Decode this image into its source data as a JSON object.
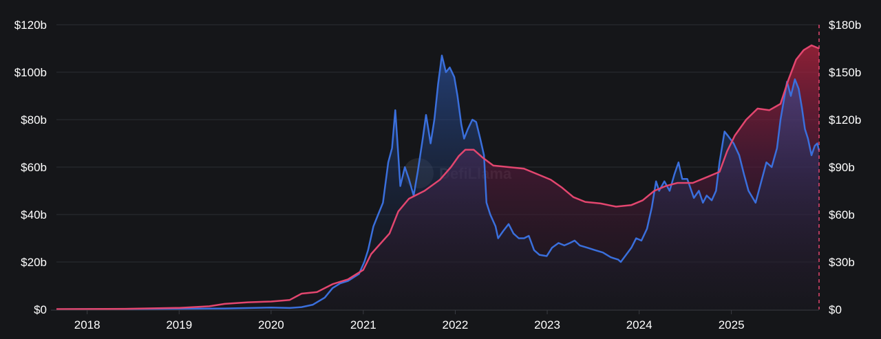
{
  "watermark": {
    "text": "DefiLlama",
    "icon": "llama-logo-icon"
  },
  "colors": {
    "background": "#151619",
    "grid": "#2c2e33",
    "axis": "#3a3c42",
    "text": "#ffffff",
    "blue_line": "#3a6fdc",
    "red_line": "#e3466f"
  },
  "chart_data": {
    "type": "area",
    "title": "",
    "xlabel": "",
    "ylabel_left": "",
    "ylabel_right": "",
    "xlim": [
      "2017-09-01",
      "2025-12-15"
    ],
    "ylim_left": [
      0,
      120
    ],
    "ylim_right": [
      0,
      180
    ],
    "x_ticks": [
      "2018",
      "2019",
      "2020",
      "2021",
      "2022",
      "2023",
      "2024",
      "2025"
    ],
    "y_ticks_left": [
      "$0",
      "$20b",
      "$40b",
      "$60b",
      "$80b",
      "$100b",
      "$120b"
    ],
    "y_ticks_right": [
      "$0",
      "$30b",
      "$60b",
      "$90b",
      "$120b",
      "$150b",
      "$180b"
    ],
    "grid": true,
    "legend": "none",
    "series": [
      {
        "axis": "left",
        "color": "#3a6fdc",
        "points": [
          [
            "2017-09-01",
            0.1
          ],
          [
            "2018-06-01",
            0.2
          ],
          [
            "2019-01-01",
            0.3
          ],
          [
            "2019-07-01",
            0.4
          ],
          [
            "2020-01-01",
            0.8
          ],
          [
            "2020-03-15",
            0.6
          ],
          [
            "2020-05-01",
            1.0
          ],
          [
            "2020-06-15",
            2.0
          ],
          [
            "2020-08-01",
            5.0
          ],
          [
            "2020-09-01",
            9.0
          ],
          [
            "2020-10-01",
            11.0
          ],
          [
            "2020-11-01",
            12.0
          ],
          [
            "2020-12-15",
            15.0
          ],
          [
            "2021-01-05",
            20.0
          ],
          [
            "2021-01-20",
            25.0
          ],
          [
            "2021-02-10",
            35.0
          ],
          [
            "2021-03-01",
            40.0
          ],
          [
            "2021-03-20",
            45.0
          ],
          [
            "2021-04-10",
            62.0
          ],
          [
            "2021-04-25",
            68.0
          ],
          [
            "2021-05-08",
            84.0
          ],
          [
            "2021-05-20",
            65.0
          ],
          [
            "2021-05-28",
            52.0
          ],
          [
            "2021-06-15",
            60.0
          ],
          [
            "2021-07-01",
            55.0
          ],
          [
            "2021-07-20",
            48.0
          ],
          [
            "2021-08-05",
            58.0
          ],
          [
            "2021-08-25",
            72.0
          ],
          [
            "2021-09-07",
            82.0
          ],
          [
            "2021-09-25",
            70.0
          ],
          [
            "2021-10-10",
            80.0
          ],
          [
            "2021-10-25",
            95.0
          ],
          [
            "2021-11-09",
            107.0
          ],
          [
            "2021-11-25",
            100.0
          ],
          [
            "2021-12-10",
            102.0
          ],
          [
            "2021-12-28",
            98.0
          ],
          [
            "2022-01-10",
            90.0
          ],
          [
            "2022-01-25",
            78.0
          ],
          [
            "2022-02-05",
            72.0
          ],
          [
            "2022-02-20",
            76.0
          ],
          [
            "2022-03-10",
            80.0
          ],
          [
            "2022-03-25",
            79.0
          ],
          [
            "2022-04-10",
            72.0
          ],
          [
            "2022-04-25",
            65.0
          ],
          [
            "2022-05-05",
            45.0
          ],
          [
            "2022-05-20",
            40.0
          ],
          [
            "2022-06-10",
            35.0
          ],
          [
            "2022-06-20",
            30.0
          ],
          [
            "2022-07-10",
            33.0
          ],
          [
            "2022-08-01",
            36.0
          ],
          [
            "2022-08-20",
            32.0
          ],
          [
            "2022-09-10",
            30.0
          ],
          [
            "2022-10-01",
            30.0
          ],
          [
            "2022-10-20",
            31.0
          ],
          [
            "2022-11-10",
            25.0
          ],
          [
            "2022-12-01",
            23.0
          ],
          [
            "2022-12-30",
            22.5
          ],
          [
            "2023-01-20",
            26.0
          ],
          [
            "2023-02-15",
            28.0
          ],
          [
            "2023-03-10",
            27.0
          ],
          [
            "2023-04-01",
            28.0
          ],
          [
            "2023-04-20",
            29.0
          ],
          [
            "2023-05-10",
            27.0
          ],
          [
            "2023-06-10",
            26.0
          ],
          [
            "2023-07-10",
            25.0
          ],
          [
            "2023-08-10",
            24.0
          ],
          [
            "2023-09-10",
            22.0
          ],
          [
            "2023-10-10",
            21.0
          ],
          [
            "2023-10-20",
            20.0
          ],
          [
            "2023-11-10",
            23.0
          ],
          [
            "2023-12-01",
            26.0
          ],
          [
            "2023-12-20",
            30.0
          ],
          [
            "2024-01-10",
            29.0
          ],
          [
            "2024-02-01",
            34.0
          ],
          [
            "2024-02-20",
            43.0
          ],
          [
            "2024-03-08",
            54.0
          ],
          [
            "2024-03-20",
            50.0
          ],
          [
            "2024-04-10",
            54.0
          ],
          [
            "2024-05-01",
            50.0
          ],
          [
            "2024-05-20",
            57.0
          ],
          [
            "2024-06-05",
            62.0
          ],
          [
            "2024-06-20",
            55.0
          ],
          [
            "2024-07-10",
            55.0
          ],
          [
            "2024-08-05",
            47.0
          ],
          [
            "2024-08-25",
            50.0
          ],
          [
            "2024-09-10",
            45.0
          ],
          [
            "2024-09-25",
            48.0
          ],
          [
            "2024-10-15",
            46.0
          ],
          [
            "2024-11-01",
            50.0
          ],
          [
            "2024-11-15",
            62.0
          ],
          [
            "2024-12-05",
            75.0
          ],
          [
            "2024-12-20",
            73.0
          ],
          [
            "2025-01-10",
            70.0
          ],
          [
            "2025-02-01",
            65.0
          ],
          [
            "2025-02-20",
            57.0
          ],
          [
            "2025-03-10",
            50.0
          ],
          [
            "2025-04-07",
            45.0
          ],
          [
            "2025-04-25",
            52.0
          ],
          [
            "2025-05-20",
            62.0
          ],
          [
            "2025-06-10",
            60.0
          ],
          [
            "2025-07-01",
            68.0
          ],
          [
            "2025-07-15",
            80.0
          ],
          [
            "2025-08-10",
            96.0
          ],
          [
            "2025-08-25",
            90.0
          ],
          [
            "2025-09-10",
            97.0
          ],
          [
            "2025-09-25",
            93.0
          ],
          [
            "2025-10-08",
            85.0
          ],
          [
            "2025-10-20",
            76.0
          ],
          [
            "2025-11-01",
            72.0
          ],
          [
            "2025-11-15",
            65.0
          ],
          [
            "2025-11-28",
            69.0
          ],
          [
            "2025-12-08",
            70.0
          ],
          [
            "2025-12-15",
            67.0
          ]
        ]
      },
      {
        "axis": "right",
        "color": "#e3466f",
        "points": [
          [
            "2017-09-01",
            0.2
          ],
          [
            "2018-06-01",
            0.4
          ],
          [
            "2019-01-01",
            1.0
          ],
          [
            "2019-05-01",
            2.0
          ],
          [
            "2019-07-01",
            3.5
          ],
          [
            "2019-10-01",
            4.5
          ],
          [
            "2020-01-01",
            5.0
          ],
          [
            "2020-03-15",
            6.0
          ],
          [
            "2020-05-01",
            10.0
          ],
          [
            "2020-07-01",
            11.0
          ],
          [
            "2020-09-01",
            16.0
          ],
          [
            "2020-11-01",
            19.0
          ],
          [
            "2021-01-01",
            25.0
          ],
          [
            "2021-02-01",
            35.0
          ],
          [
            "2021-03-01",
            40.0
          ],
          [
            "2021-04-15",
            48.0
          ],
          [
            "2021-05-20",
            62.0
          ],
          [
            "2021-07-01",
            70.0
          ],
          [
            "2021-09-01",
            75.0
          ],
          [
            "2021-11-01",
            82.0
          ],
          [
            "2021-12-15",
            90.0
          ],
          [
            "2022-01-15",
            97.0
          ],
          [
            "2022-02-10",
            101.0
          ],
          [
            "2022-03-15",
            101.0
          ],
          [
            "2022-04-20",
            96.0
          ],
          [
            "2022-06-01",
            91.0
          ],
          [
            "2022-08-01",
            90.0
          ],
          [
            "2022-10-01",
            89.0
          ],
          [
            "2022-12-01",
            85.0
          ],
          [
            "2023-01-15",
            82.0
          ],
          [
            "2023-03-01",
            77.0
          ],
          [
            "2023-04-15",
            71.0
          ],
          [
            "2023-06-01",
            68.0
          ],
          [
            "2023-08-01",
            67.0
          ],
          [
            "2023-10-01",
            65.0
          ],
          [
            "2023-12-01",
            66.0
          ],
          [
            "2024-01-15",
            69.0
          ],
          [
            "2024-03-01",
            75.0
          ],
          [
            "2024-04-15",
            78.0
          ],
          [
            "2024-06-01",
            80.0
          ],
          [
            "2024-08-01",
            80.0
          ],
          [
            "2024-10-01",
            84.0
          ],
          [
            "2024-11-15",
            87.0
          ],
          [
            "2024-12-15",
            100.0
          ],
          [
            "2025-01-15",
            110.0
          ],
          [
            "2025-03-01",
            120.0
          ],
          [
            "2025-04-15",
            127.0
          ],
          [
            "2025-06-01",
            126.0
          ],
          [
            "2025-07-15",
            130.0
          ],
          [
            "2025-08-15",
            145.0
          ],
          [
            "2025-09-15",
            158.0
          ],
          [
            "2025-10-15",
            164.0
          ],
          [
            "2025-11-15",
            167.0
          ],
          [
            "2025-12-15",
            165.0
          ]
        ]
      }
    ]
  }
}
